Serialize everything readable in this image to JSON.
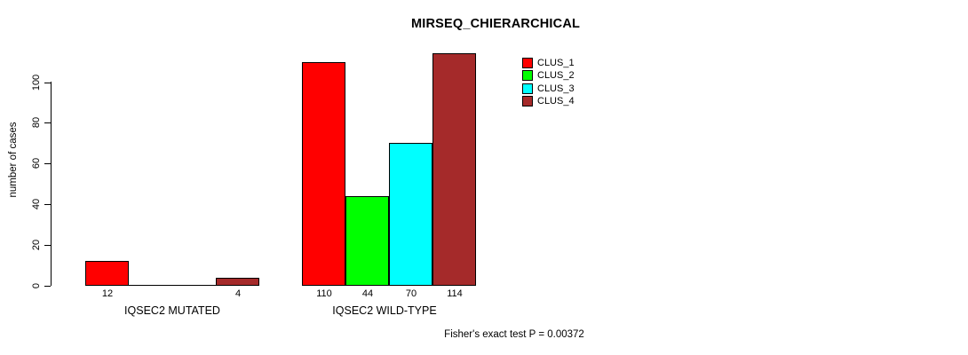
{
  "chart_data": {
    "type": "bar",
    "title": "MIRSEQ_CHIERARCHICAL",
    "xlabel": "",
    "ylabel": "number of cases",
    "ylim": [
      0,
      114
    ],
    "yticks": [
      0,
      20,
      40,
      60,
      80,
      100
    ],
    "grid": false,
    "legend_position": "top-right",
    "categories": [
      "IQSEC2 MUTATED",
      "IQSEC2 WILD-TYPE"
    ],
    "series": [
      {
        "name": "CLUS_1",
        "color": "#FF0000",
        "values": [
          12,
          110
        ]
      },
      {
        "name": "CLUS_2",
        "color": "#00FF00",
        "values": [
          0,
          44
        ]
      },
      {
        "name": "CLUS_3",
        "color": "#00FFFF",
        "values": [
          0,
          70
        ]
      },
      {
        "name": "CLUS_4",
        "color": "#A52A2A",
        "values": [
          4,
          114
        ]
      }
    ],
    "groups": [
      {
        "label": "IQSEC2 MUTATED",
        "values": [
          12,
          0,
          0,
          4
        ],
        "value_labels": [
          "12",
          "",
          "",
          "4"
        ]
      },
      {
        "label": "IQSEC2 WILD-TYPE",
        "values": [
          110,
          44,
          70,
          114
        ],
        "value_labels": [
          "110",
          "44",
          "70",
          "114"
        ]
      }
    ],
    "footnote": "Fisher's exact test P = 0.00372"
  },
  "colors": {
    "axis": "#000000",
    "bar_border": "#000000",
    "background": "#FFFFFF"
  }
}
